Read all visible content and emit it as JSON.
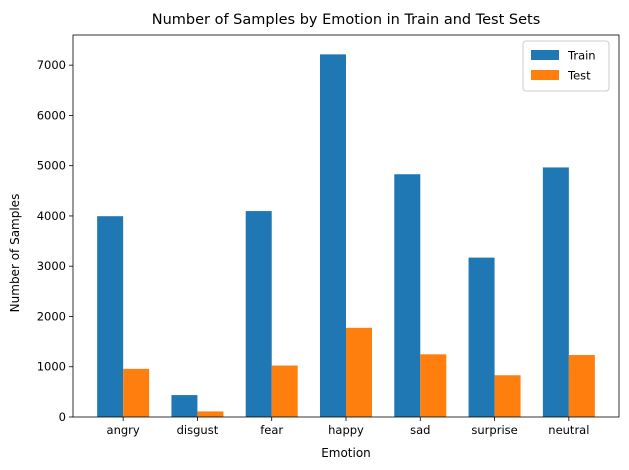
{
  "chart_data": {
    "type": "bar",
    "title": "Number of Samples by Emotion in Train and Test Sets",
    "xlabel": "Emotion",
    "ylabel": "Number of Samples",
    "categories": [
      "angry",
      "disgust",
      "fear",
      "happy",
      "sad",
      "surprise",
      "neutral"
    ],
    "series": [
      {
        "name": "Train",
        "color": "#1f77b4",
        "values": [
          3995,
          436,
          4097,
          7215,
          4830,
          3171,
          4965
        ]
      },
      {
        "name": "Test",
        "color": "#ff7f0e",
        "values": [
          958,
          111,
          1024,
          1774,
          1247,
          831,
          1233
        ]
      }
    ],
    "ylim": [
      0,
      7600
    ],
    "yticks": [
      0,
      1000,
      2000,
      3000,
      4000,
      5000,
      6000,
      7000
    ],
    "grid": false,
    "legend_position": "top-right"
  }
}
